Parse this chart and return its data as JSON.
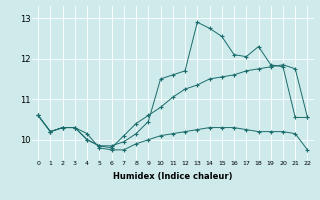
{
  "xlabel": "Humidex (Indice chaleur)",
  "xlim": [
    -0.5,
    22.5
  ],
  "ylim": [
    9.5,
    13.3
  ],
  "yticks": [
    10,
    11,
    12,
    13
  ],
  "xticks": [
    0,
    1,
    2,
    3,
    4,
    5,
    6,
    7,
    8,
    9,
    10,
    11,
    12,
    13,
    14,
    15,
    16,
    17,
    18,
    19,
    20,
    21,
    22
  ],
  "background_color": "#ceeaea",
  "line_color": "#1a6b6b",
  "series": [
    {
      "x": [
        0,
        1,
        2,
        3,
        4,
        5,
        6,
        7,
        8,
        9,
        10,
        11,
        12,
        13,
        14,
        15,
        16,
        17,
        18,
        19,
        20,
        21,
        22
      ],
      "y": [
        10.6,
        10.2,
        10.3,
        10.3,
        10.15,
        9.8,
        9.75,
        9.75,
        9.9,
        10.0,
        10.1,
        10.15,
        10.2,
        10.25,
        10.3,
        10.3,
        10.3,
        10.25,
        10.2,
        10.2,
        10.2,
        10.15,
        9.75
      ]
    },
    {
      "x": [
        0,
        1,
        2,
        3,
        4,
        5,
        6,
        7,
        8,
        9,
        10,
        11,
        12,
        13,
        14,
        15,
        16,
        17,
        18,
        19,
        20,
        21,
        22
      ],
      "y": [
        10.6,
        10.2,
        10.3,
        10.3,
        10.0,
        9.85,
        9.8,
        10.1,
        10.4,
        10.6,
        10.8,
        11.05,
        11.25,
        11.35,
        11.5,
        11.55,
        11.6,
        11.7,
        11.75,
        11.8,
        11.85,
        11.75,
        10.55
      ]
    },
    {
      "x": [
        0,
        1,
        2,
        3,
        4,
        5,
        6,
        7,
        8,
        9,
        10,
        11,
        12,
        13,
        14,
        15,
        16,
        17,
        18,
        19,
        20,
        21,
        22
      ],
      "y": [
        10.6,
        10.2,
        10.3,
        10.3,
        10.0,
        9.85,
        9.85,
        9.95,
        10.15,
        10.45,
        11.5,
        11.6,
        11.7,
        12.9,
        12.75,
        12.55,
        12.1,
        12.05,
        12.3,
        11.85,
        11.8,
        10.55,
        10.55
      ]
    }
  ],
  "figsize": [
    3.2,
    2.0
  ],
  "dpi": 100
}
